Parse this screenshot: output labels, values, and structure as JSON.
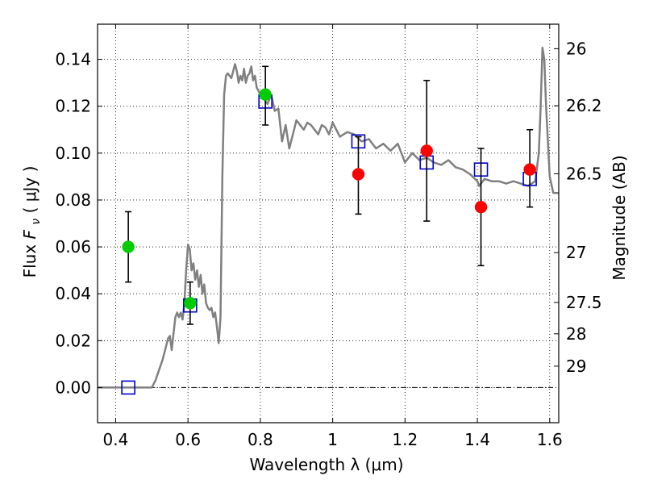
{
  "chart_data": {
    "type": "scatter",
    "xlabel": "Wavelength  λ (μm)",
    "ylabel_left": {
      "prefix": "Flux  ",
      "symbol": "F",
      "subscript": "ν",
      "suffix": "  ( μJy )"
    },
    "ylabel_right": "Magnitude (AB)",
    "xlim": [
      0.35,
      1.625
    ],
    "ylim": [
      -0.015,
      0.155
    ],
    "grid": true,
    "x_ticks": [
      {
        "value": 0.4,
        "label": "0.4"
      },
      {
        "value": 0.6,
        "label": "0.6"
      },
      {
        "value": 0.8,
        "label": "0.8"
      },
      {
        "value": 1.0,
        "label": "1"
      },
      {
        "value": 1.2,
        "label": "1.2"
      },
      {
        "value": 1.4,
        "label": "1.4"
      },
      {
        "value": 1.6,
        "label": "1.6"
      }
    ],
    "y_ticks": [
      {
        "value": 0.0,
        "label": "0.00"
      },
      {
        "value": 0.02,
        "label": "0.02"
      },
      {
        "value": 0.04,
        "label": "0.04"
      },
      {
        "value": 0.06,
        "label": "0.06"
      },
      {
        "value": 0.08,
        "label": "0.08"
      },
      {
        "value": 0.1,
        "label": "0.10"
      },
      {
        "value": 0.12,
        "label": "0.12"
      },
      {
        "value": 0.14,
        "label": "0.14"
      }
    ],
    "mag_ticks": [
      {
        "value": 26,
        "label": "26"
      },
      {
        "value": 26.2,
        "label": "26.2"
      },
      {
        "value": 26.5,
        "label": "26.5"
      },
      {
        "value": 27,
        "label": "27"
      },
      {
        "value": 27.5,
        "label": "27.5"
      },
      {
        "value": 28,
        "label": "28"
      },
      {
        "value": 29,
        "label": "29"
      }
    ],
    "series": [
      {
        "name": "model spectrum",
        "kind": "line",
        "color": "#808080",
        "x": [
          0.35,
          0.5,
          0.51,
          0.53,
          0.545,
          0.55,
          0.555,
          0.56,
          0.565,
          0.57,
          0.575,
          0.58,
          0.585,
          0.59,
          0.595,
          0.6,
          0.605,
          0.61,
          0.615,
          0.62,
          0.625,
          0.63,
          0.635,
          0.64,
          0.645,
          0.65,
          0.655,
          0.66,
          0.665,
          0.67,
          0.675,
          0.68,
          0.685,
          0.69,
          0.695,
          0.7,
          0.705,
          0.71,
          0.72,
          0.73,
          0.735,
          0.74,
          0.745,
          0.75,
          0.755,
          0.76,
          0.765,
          0.77,
          0.775,
          0.78,
          0.785,
          0.79,
          0.8,
          0.81,
          0.82,
          0.83,
          0.84,
          0.85,
          0.86,
          0.87,
          0.875,
          0.88,
          0.89,
          0.9,
          0.92,
          0.93,
          0.94,
          0.95,
          0.96,
          0.97,
          0.98,
          0.99,
          1.0,
          1.02,
          1.04,
          1.06,
          1.08,
          1.1,
          1.12,
          1.14,
          1.16,
          1.18,
          1.2,
          1.22,
          1.24,
          1.26,
          1.28,
          1.3,
          1.32,
          1.34,
          1.36,
          1.38,
          1.4,
          1.405,
          1.42,
          1.44,
          1.46,
          1.48,
          1.5,
          1.52,
          1.54,
          1.56,
          1.57,
          1.575,
          1.58,
          1.585,
          1.59,
          1.6,
          1.61,
          1.625
        ],
        "y": [
          0.0,
          0.0,
          0.003,
          0.012,
          0.021,
          0.022,
          0.016,
          0.023,
          0.03,
          0.032,
          0.03,
          0.032,
          0.029,
          0.036,
          0.05,
          0.061,
          0.059,
          0.05,
          0.053,
          0.046,
          0.05,
          0.043,
          0.048,
          0.04,
          0.044,
          0.036,
          0.034,
          0.033,
          0.034,
          0.03,
          0.032,
          0.026,
          0.019,
          0.03,
          0.09,
          0.125,
          0.133,
          0.134,
          0.132,
          0.138,
          0.135,
          0.13,
          0.133,
          0.131,
          0.136,
          0.13,
          0.133,
          0.134,
          0.137,
          0.131,
          0.133,
          0.128,
          0.125,
          0.123,
          0.121,
          0.125,
          0.118,
          0.119,
          0.105,
          0.112,
          0.107,
          0.102,
          0.108,
          0.114,
          0.11,
          0.113,
          0.112,
          0.11,
          0.108,
          0.112,
          0.111,
          0.108,
          0.113,
          0.107,
          0.109,
          0.108,
          0.105,
          0.106,
          0.102,
          0.104,
          0.101,
          0.104,
          0.096,
          0.1,
          0.097,
          0.098,
          0.096,
          0.095,
          0.097,
          0.094,
          0.093,
          0.091,
          0.088,
          0.086,
          0.089,
          0.088,
          0.088,
          0.087,
          0.088,
          0.087,
          0.086,
          0.088,
          0.1,
          0.12,
          0.145,
          0.14,
          0.12,
          0.09,
          0.083,
          0.083
        ]
      },
      {
        "name": "model band flux",
        "kind": "open-square",
        "color": "#0000cc",
        "x": [
          0.435,
          0.606,
          0.814,
          1.071,
          1.26,
          1.41,
          1.545
        ],
        "y": [
          0.0,
          0.035,
          0.122,
          0.105,
          0.096,
          0.093,
          0.089
        ]
      },
      {
        "name": "observed (green)",
        "kind": "point-errorbar",
        "color": "#00cc00",
        "x": [
          0.435,
          0.606,
          0.814
        ],
        "y": [
          0.06,
          0.036,
          0.125
        ],
        "err_low": [
          0.045,
          0.027,
          0.112
        ],
        "err_high": [
          0.075,
          0.045,
          0.137
        ]
      },
      {
        "name": "observed (red)",
        "kind": "point-errorbar",
        "color": "#ff0000",
        "x": [
          1.071,
          1.26,
          1.41,
          1.545
        ],
        "y": [
          0.091,
          0.101,
          0.077,
          0.093
        ],
        "err_low": [
          0.074,
          0.071,
          0.052,
          0.077
        ],
        "err_high": [
          0.107,
          0.131,
          0.102,
          0.11
        ]
      }
    ]
  }
}
